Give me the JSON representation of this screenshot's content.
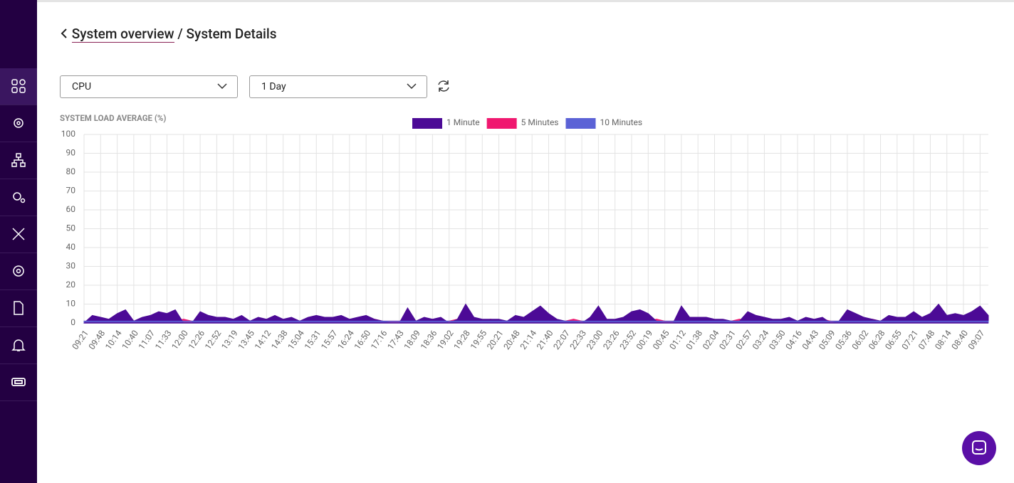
{
  "header": {
    "breadcrumb_link": "System overview",
    "separator": "/",
    "title": "System Details"
  },
  "filters": {
    "metric": "CPU",
    "range": "1 Day"
  },
  "chart_data": {
    "type": "area",
    "title": "SYSTEM LOAD AVERAGE (%)",
    "categories": [
      "09:21",
      null,
      "09:48",
      null,
      "10:14",
      null,
      "10:40",
      null,
      "11:07",
      null,
      "11:33",
      null,
      "12:00",
      null,
      "12:26",
      null,
      "12:52",
      null,
      "13:19",
      null,
      "13:45",
      null,
      "14:12",
      null,
      "14:38",
      null,
      "15:04",
      null,
      "15:31",
      null,
      "15:57",
      null,
      "16:24",
      null,
      "16:50",
      null,
      "17:16",
      null,
      "17:43",
      null,
      "18:09",
      null,
      "18:36",
      null,
      "19:02",
      null,
      "19:28",
      null,
      "19:55",
      null,
      "20:21",
      null,
      "20:48",
      null,
      "21:14",
      null,
      "21:40",
      null,
      "22:07",
      null,
      "22:33",
      null,
      "23:00",
      null,
      "23:26",
      null,
      "23:52",
      null,
      "00:19",
      null,
      "00:45",
      null,
      "01:12",
      null,
      "01:38",
      null,
      "02:04",
      null,
      "02:31",
      null,
      "02:57",
      null,
      "03:24",
      null,
      "03:50",
      null,
      "04:16",
      null,
      "04:43",
      null,
      "05:09",
      null,
      "05:36",
      null,
      "06:02",
      null,
      "06:28",
      null,
      "06:55",
      null,
      "07:21",
      null,
      "07:48",
      null,
      "08:14",
      null,
      "08:40",
      null,
      "09:07",
      null
    ],
    "series": [
      {
        "name": "1 Minute",
        "color": "#4c0a96",
        "values": [
          0,
          4,
          3,
          2,
          5,
          7,
          1,
          3,
          4,
          6,
          5,
          7,
          0,
          0,
          6,
          4,
          3,
          3,
          2,
          4,
          1,
          3,
          2,
          4,
          2,
          3,
          1,
          3,
          4,
          3,
          3,
          4,
          2,
          3,
          4,
          2,
          1,
          0,
          0,
          8,
          1,
          3,
          2,
          3,
          0,
          2,
          10,
          3,
          2,
          2,
          2,
          1,
          4,
          3,
          6,
          9,
          5,
          2,
          1,
          1,
          0,
          3,
          9,
          2,
          2,
          3,
          6,
          7,
          5,
          1,
          0,
          0,
          9,
          3,
          3,
          3,
          2,
          2,
          1,
          1,
          6,
          4,
          3,
          2,
          2,
          3,
          1,
          3,
          2,
          3,
          0,
          1,
          7,
          5,
          3,
          2,
          1,
          4,
          3,
          3,
          6,
          3,
          5,
          10,
          4,
          5,
          4,
          6,
          9,
          4
        ]
      },
      {
        "name": "5 Minutes",
        "color": "#f0186f",
        "values": [
          1,
          1,
          2,
          1,
          1,
          2,
          1,
          1,
          1,
          2,
          1,
          1,
          2,
          1,
          1,
          2,
          1,
          1,
          1,
          2,
          1,
          1,
          2,
          1,
          1,
          2,
          1,
          1,
          1,
          2,
          1,
          1,
          2,
          1,
          1,
          2,
          1,
          1,
          1,
          2,
          1,
          1,
          2,
          1,
          1,
          2,
          1,
          1,
          1,
          2,
          1,
          1,
          2,
          1,
          1,
          2,
          1,
          1,
          1,
          2,
          1,
          1,
          2,
          1,
          1,
          2,
          1,
          1,
          1,
          2,
          1,
          1,
          2,
          1,
          1,
          2,
          1,
          1,
          1,
          2,
          1,
          1,
          2,
          1,
          1,
          2,
          1,
          1,
          1,
          2,
          1,
          1,
          2,
          1,
          1,
          2,
          1,
          1,
          1,
          2,
          1,
          1,
          2,
          1,
          1,
          2,
          1,
          1,
          1,
          2
        ]
      },
      {
        "name": "10 Minutes",
        "color": "#5b62d6",
        "values": [
          1,
          1,
          1,
          1,
          1,
          1,
          1,
          1,
          1,
          1,
          1,
          1,
          1,
          1,
          1,
          1,
          1,
          1,
          1,
          1,
          1,
          1,
          1,
          1,
          1,
          1,
          1,
          1,
          1,
          1,
          1,
          1,
          1,
          1,
          1,
          1,
          1,
          1,
          1,
          1,
          1,
          1,
          1,
          1,
          1,
          1,
          1,
          1,
          1,
          1,
          1,
          1,
          1,
          1,
          1,
          1,
          1,
          1,
          1,
          1,
          1,
          1,
          1,
          1,
          1,
          1,
          1,
          1,
          1,
          1,
          1,
          1,
          1,
          1,
          1,
          1,
          1,
          1,
          1,
          1,
          1,
          1,
          1,
          1,
          1,
          1,
          1,
          1,
          1,
          1,
          1,
          1,
          1,
          1,
          1,
          1,
          1,
          1,
          1,
          1,
          1,
          1,
          1,
          1,
          1,
          1,
          1,
          1,
          1,
          1
        ]
      }
    ],
    "ylim": [
      0,
      100
    ],
    "yticks": [
      0,
      10,
      20,
      30,
      40,
      50,
      60,
      70,
      80,
      90,
      100
    ],
    "grid": true,
    "legend": "top"
  }
}
